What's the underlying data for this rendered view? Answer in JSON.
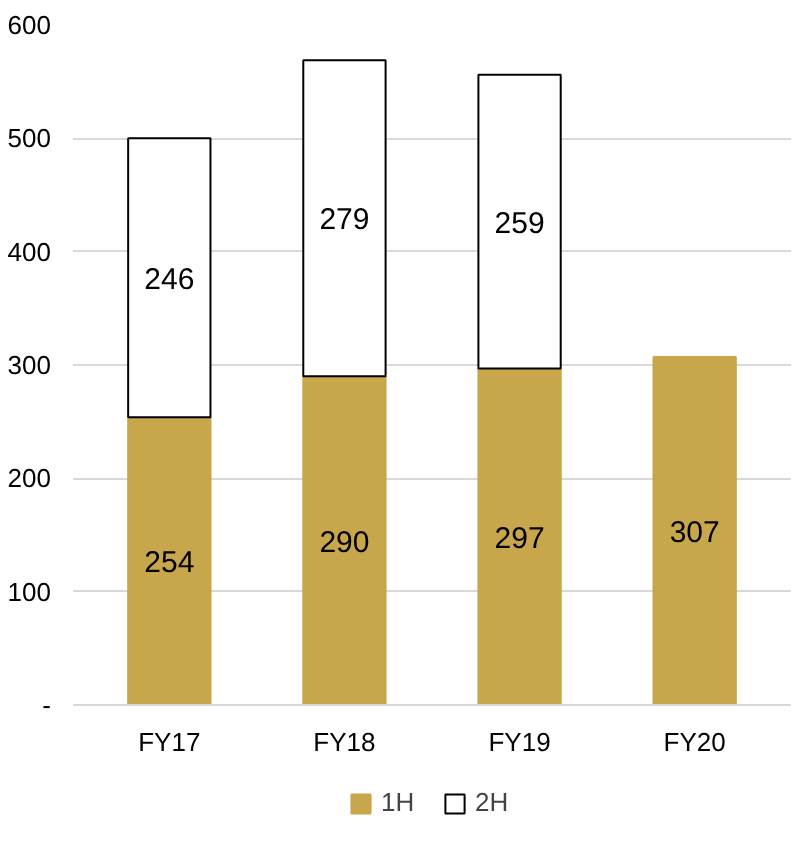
{
  "chart_data": {
    "type": "bar",
    "stacked": true,
    "categories": [
      "FY17",
      "FY18",
      "FY19",
      "FY20"
    ],
    "series": [
      {
        "name": "1H",
        "color": "#c8a64c",
        "values": [
          254,
          290,
          297,
          307
        ]
      },
      {
        "name": "2H",
        "color": "#ffffff",
        "values": [
          246,
          279,
          259,
          null
        ]
      }
    ],
    "ylim": [
      0,
      600
    ],
    "yticks": [
      {
        "value": 0,
        "label": "-"
      },
      100,
      200,
      300,
      400,
      500,
      600
    ],
    "grid": "y",
    "legend": "bottom",
    "data_labels": true
  }
}
